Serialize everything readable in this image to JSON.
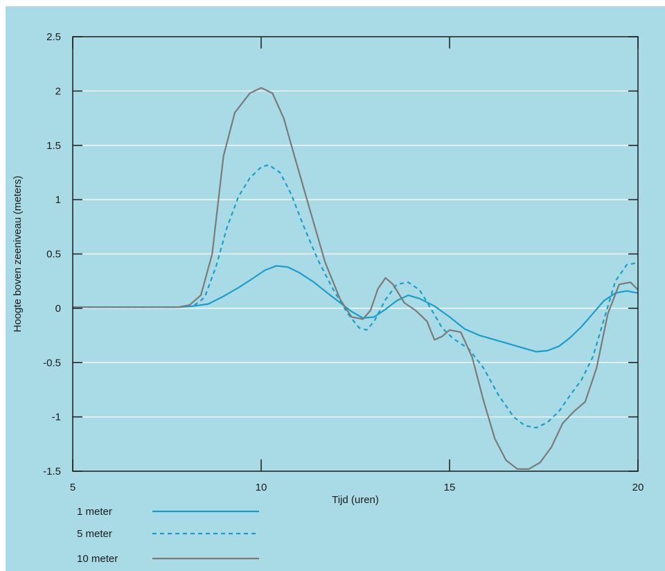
{
  "chart_data": {
    "type": "line",
    "title": "",
    "xlabel": "Tijd (uren)",
    "ylabel": "Hoogte boven zeeniveau (meters)",
    "xlim": [
      5,
      20
    ],
    "ylim": [
      -1.5,
      2.5
    ],
    "xticks": [
      5,
      10,
      15,
      20
    ],
    "xtick_labels": [
      "5",
      "10",
      "15",
      "20"
    ],
    "yticks": [
      2.5,
      2,
      1.5,
      1,
      0.5,
      0,
      -0.5,
      -1,
      -1.5
    ],
    "ytick_labels": [
      "2.5",
      "2",
      "1.5",
      "1",
      "0.5",
      "0",
      "-0.5",
      "-1",
      "-1.5"
    ],
    "grid": "horizontal",
    "background_color": "#a9dbe6",
    "legend_position": "bottom-left, below plot",
    "series": [
      {
        "name": "1 meter",
        "color": "#1a9ec9",
        "style": "solid",
        "x": [
          5,
          6,
          7,
          7.8,
          8.2,
          8.6,
          9.0,
          9.4,
          9.8,
          10.1,
          10.4,
          10.7,
          11.0,
          11.4,
          11.8,
          12.1,
          12.4,
          12.7,
          13.0,
          13.3,
          13.6,
          13.9,
          14.2,
          14.6,
          15.0,
          15.4,
          15.8,
          16.2,
          16.6,
          17.0,
          17.3,
          17.6,
          17.9,
          18.2,
          18.5,
          18.8,
          19.1,
          19.4,
          19.7,
          20.0
        ],
        "y": [
          0.01,
          0.01,
          0.01,
          0.01,
          0.02,
          0.04,
          0.11,
          0.19,
          0.28,
          0.35,
          0.39,
          0.38,
          0.33,
          0.24,
          0.13,
          0.05,
          -0.03,
          -0.09,
          -0.08,
          -0.01,
          0.07,
          0.12,
          0.09,
          0.02,
          -0.08,
          -0.19,
          -0.25,
          -0.29,
          -0.33,
          -0.37,
          -0.4,
          -0.39,
          -0.35,
          -0.27,
          -0.17,
          -0.05,
          0.07,
          0.14,
          0.16,
          0.14
        ]
      },
      {
        "name": "5 meter",
        "color": "#1a9ec9",
        "style": "dashed",
        "x": [
          5,
          6,
          7,
          7.8,
          8.2,
          8.5,
          8.8,
          9.1,
          9.4,
          9.7,
          10.0,
          10.2,
          10.5,
          10.8,
          11.1,
          11.5,
          11.9,
          12.3,
          12.6,
          12.8,
          13.0,
          13.3,
          13.6,
          13.9,
          14.2,
          14.5,
          14.8,
          15.1,
          15.5,
          15.9,
          16.3,
          16.7,
          17.0,
          17.3,
          17.6,
          17.9,
          18.2,
          18.5,
          18.8,
          19.1,
          19.4,
          19.7,
          20.0
        ],
        "y": [
          0.01,
          0.01,
          0.01,
          0.01,
          0.02,
          0.1,
          0.38,
          0.75,
          1.03,
          1.2,
          1.3,
          1.32,
          1.25,
          1.05,
          0.78,
          0.45,
          0.18,
          -0.05,
          -0.18,
          -0.2,
          -0.12,
          0.08,
          0.22,
          0.24,
          0.17,
          0.0,
          -0.18,
          -0.28,
          -0.37,
          -0.55,
          -0.8,
          -1.0,
          -1.08,
          -1.1,
          -1.05,
          -0.95,
          -0.8,
          -0.66,
          -0.45,
          -0.1,
          0.25,
          0.4,
          0.42
        ]
      },
      {
        "name": "10 meter",
        "color": "#7a7a7a",
        "style": "solid",
        "x": [
          5,
          6,
          7,
          7.8,
          8.1,
          8.4,
          8.7,
          9.0,
          9.3,
          9.7,
          10.0,
          10.3,
          10.6,
          10.9,
          11.3,
          11.7,
          12.1,
          12.4,
          12.7,
          12.9,
          13.1,
          13.3,
          13.5,
          13.8,
          14.1,
          14.4,
          14.6,
          14.8,
          15.0,
          15.3,
          15.6,
          15.9,
          16.2,
          16.5,
          16.8,
          17.1,
          17.4,
          17.7,
          18.0,
          18.3,
          18.6,
          18.9,
          19.2,
          19.5,
          19.8,
          20.0
        ],
        "y": [
          0.01,
          0.01,
          0.01,
          0.01,
          0.03,
          0.12,
          0.5,
          1.4,
          1.8,
          1.98,
          2.03,
          1.98,
          1.75,
          1.38,
          0.9,
          0.42,
          0.08,
          -0.08,
          -0.1,
          -0.02,
          0.18,
          0.28,
          0.22,
          0.05,
          -0.02,
          -0.12,
          -0.29,
          -0.26,
          -0.2,
          -0.22,
          -0.45,
          -0.85,
          -1.2,
          -1.4,
          -1.48,
          -1.48,
          -1.42,
          -1.28,
          -1.06,
          -0.95,
          -0.86,
          -0.55,
          -0.05,
          0.22,
          0.24,
          0.17
        ]
      }
    ]
  }
}
